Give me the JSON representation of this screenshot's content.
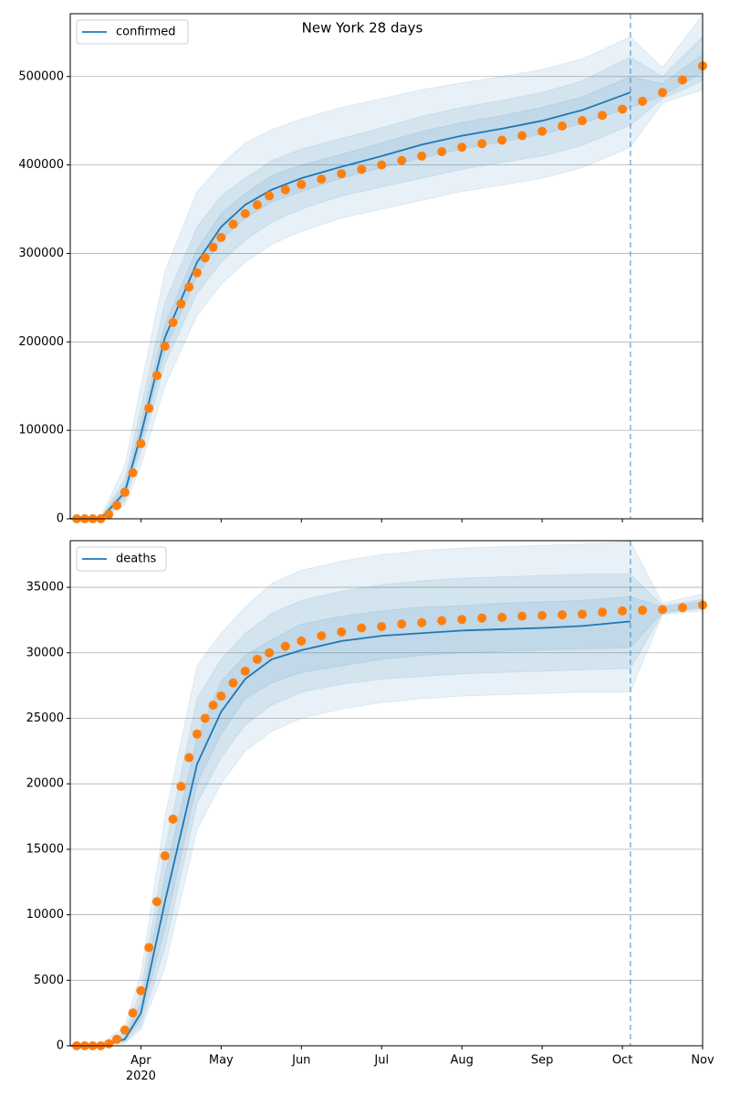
{
  "chart_data": [
    {
      "type": "line",
      "title": "New York 28 days",
      "ylim": [
        0,
        571000
      ],
      "yticks": [
        0,
        100000,
        200000,
        300000,
        400000,
        500000
      ],
      "grid": "y",
      "legend": "upper left",
      "xlim": [
        3.12,
        11
      ],
      "forecast_start": 10.1,
      "x": [
        3.12,
        3.5,
        3.8,
        4.0,
        4.3,
        4.7,
        5.0,
        5.3,
        5.63,
        6.0,
        6.5,
        7.0,
        7.5,
        8.0,
        8.5,
        9.0,
        9.5,
        10.1,
        10.5,
        11
      ],
      "model": {
        "name": "confirmed",
        "color": "#1f77b4",
        "values": [
          0,
          0,
          30000,
          95000,
          205000,
          290000,
          330000,
          355000,
          372000,
          385000,
          398000,
          410000,
          423000,
          433000,
          441000,
          450000,
          462000,
          482000,
          null,
          null
        ]
      },
      "band_color": "#1f77b4",
      "band_opacity": 0.1,
      "bands": [
        {
          "lower": [
            0,
            0,
            15000,
            60000,
            150000,
            230000,
            265000,
            290000,
            310000,
            325000,
            340000,
            350000,
            360000,
            370000,
            377000,
            385000,
            397000,
            420000,
            470000,
            485000
          ],
          "upper": [
            0,
            2000,
            60000,
            150000,
            280000,
            370000,
            400000,
            425000,
            440000,
            452000,
            465000,
            475000,
            485000,
            493000,
            500000,
            508000,
            520000,
            545000,
            510000,
            570000
          ]
        },
        {
          "lower": [
            0,
            0,
            20000,
            75000,
            175000,
            255000,
            290000,
            315000,
            335000,
            350000,
            365000,
            375000,
            385000,
            395000,
            403000,
            410000,
            422000,
            445000,
            475000,
            495000
          ],
          "upper": [
            0,
            1000,
            45000,
            125000,
            245000,
            330000,
            365000,
            385000,
            405000,
            418000,
            430000,
            442000,
            455000,
            465000,
            473000,
            482000,
            495000,
            522000,
            500000,
            545000
          ]
        },
        {
          "lower": [
            0,
            0,
            25000,
            85000,
            190000,
            275000,
            315000,
            340000,
            358000,
            370000,
            385000,
            397000,
            408000,
            418000,
            426000,
            435000,
            447000,
            465000,
            478000,
            505000
          ],
          "upper": [
            0,
            500,
            38000,
            108000,
            220000,
            305000,
            345000,
            368000,
            388000,
            400000,
            412000,
            425000,
            438000,
            448000,
            456000,
            465000,
            477000,
            500000,
            492000,
            525000
          ]
        }
      ],
      "observed_x": [
        3.2,
        3.3,
        3.4,
        3.5,
        3.6,
        3.7,
        3.8,
        3.9,
        4.0,
        4.1,
        4.2,
        4.3,
        4.4,
        4.5,
        4.6,
        4.7,
        4.8,
        4.9,
        5.0,
        5.15,
        5.3,
        5.45,
        5.6,
        5.8,
        6.0,
        6.25,
        6.5,
        6.75,
        7.0,
        7.25,
        7.5,
        7.75,
        8.0,
        8.25,
        8.5,
        8.75,
        9.0,
        9.25,
        9.5,
        9.75,
        10.0,
        10.25,
        10.5,
        10.75,
        11.0
      ],
      "observed": {
        "color": "#ff7f0e",
        "values": [
          0,
          0,
          0,
          0,
          5000,
          15000,
          30000,
          52000,
          85000,
          125000,
          162000,
          195000,
          222000,
          243000,
          262000,
          278000,
          295000,
          307000,
          318000,
          333000,
          345000,
          355000,
          365000,
          372000,
          378000,
          384000,
          390000,
          395000,
          400000,
          405000,
          410000,
          415000,
          420000,
          424000,
          428000,
          433000,
          438000,
          444000,
          450000,
          456000,
          463000,
          472000,
          482000,
          496000,
          512000
        ]
      }
    },
    {
      "type": "line",
      "ylim": [
        0,
        38560
      ],
      "yticks": [
        0,
        5000,
        10000,
        15000,
        20000,
        25000,
        30000,
        35000
      ],
      "grid": "y",
      "legend": "upper left",
      "xlim": [
        3.12,
        11
      ],
      "forecast_start": 10.1,
      "xticks": [
        {
          "value": 4,
          "label": "Apr 2020"
        },
        {
          "value": 5,
          "label": "May"
        },
        {
          "value": 6,
          "label": "Jun"
        },
        {
          "value": 7,
          "label": "Jul"
        },
        {
          "value": 8,
          "label": "Aug"
        },
        {
          "value": 9,
          "label": "Sep"
        },
        {
          "value": 10,
          "label": "Oct"
        },
        {
          "value": 11,
          "label": "Nov"
        }
      ],
      "x": [
        3.12,
        3.5,
        3.8,
        4.0,
        4.3,
        4.7,
        5.0,
        5.3,
        5.63,
        6.0,
        6.5,
        7.0,
        7.5,
        8.0,
        8.5,
        9.0,
        9.5,
        10.1,
        10.5,
        11
      ],
      "model": {
        "name": "deaths",
        "color": "#1f77b4",
        "values": [
          0,
          0,
          500,
          2500,
          11000,
          21500,
          25500,
          28000,
          29500,
          30200,
          30900,
          31300,
          31500,
          31700,
          31800,
          31900,
          32050,
          32400,
          null,
          null
        ]
      },
      "band_color": "#1f77b4",
      "band_opacity": 0.1,
      "bands": [
        {
          "lower": [
            0,
            0,
            200,
            1200,
            6000,
            16500,
            20000,
            22500,
            24000,
            25000,
            25700,
            26200,
            26500,
            26700,
            26800,
            26900,
            27000,
            27000,
            32900,
            33200
          ],
          "upper": [
            0,
            100,
            1500,
            5500,
            17500,
            29000,
            31500,
            33500,
            35300,
            36300,
            37000,
            37500,
            37800,
            38000,
            38100,
            38200,
            38300,
            38500,
            33800,
            34500
          ]
        },
        {
          "lower": [
            0,
            0,
            300,
            1500,
            7500,
            18500,
            22000,
            24500,
            26000,
            27000,
            27600,
            28000,
            28200,
            28400,
            28500,
            28600,
            28700,
            28800,
            33000,
            33400
          ],
          "upper": [
            0,
            50,
            1000,
            4200,
            15000,
            26500,
            29500,
            31500,
            33000,
            34000,
            34700,
            35200,
            35500,
            35700,
            35800,
            35900,
            36000,
            36000,
            33600,
            34100
          ]
        },
        {
          "lower": [
            0,
            0,
            400,
            2000,
            9000,
            20000,
            23800,
            26500,
            27700,
            28500,
            29000,
            29500,
            29800,
            30000,
            30100,
            30200,
            30300,
            30400,
            33100,
            33500
          ],
          "upper": [
            0,
            20,
            700,
            3300,
            13000,
            23500,
            27800,
            29800,
            31000,
            32200,
            32800,
            33200,
            33500,
            33600,
            33800,
            33900,
            34000,
            34300,
            33500,
            33900
          ]
        }
      ],
      "observed_x": [
        3.2,
        3.3,
        3.4,
        3.5,
        3.6,
        3.7,
        3.8,
        3.9,
        4.0,
        4.1,
        4.2,
        4.3,
        4.4,
        4.5,
        4.6,
        4.7,
        4.8,
        4.9,
        5.0,
        5.15,
        5.3,
        5.45,
        5.6,
        5.8,
        6.0,
        6.25,
        6.5,
        6.75,
        7.0,
        7.25,
        7.5,
        7.75,
        8.0,
        8.25,
        8.5,
        8.75,
        9.0,
        9.25,
        9.5,
        9.75,
        10.0,
        10.25,
        10.5,
        10.75,
        11.0
      ],
      "observed": {
        "color": "#ff7f0e",
        "values": [
          0,
          0,
          0,
          0,
          150,
          500,
          1200,
          2500,
          4200,
          7500,
          11000,
          14500,
          17300,
          19800,
          22000,
          23800,
          25000,
          26000,
          26700,
          27700,
          28600,
          29500,
          30000,
          30500,
          30900,
          31300,
          31600,
          31900,
          32000,
          32200,
          32300,
          32450,
          32550,
          32650,
          32700,
          32800,
          32850,
          32900,
          32950,
          33100,
          33200,
          33250,
          33300,
          33450,
          33650
        ]
      }
    }
  ]
}
